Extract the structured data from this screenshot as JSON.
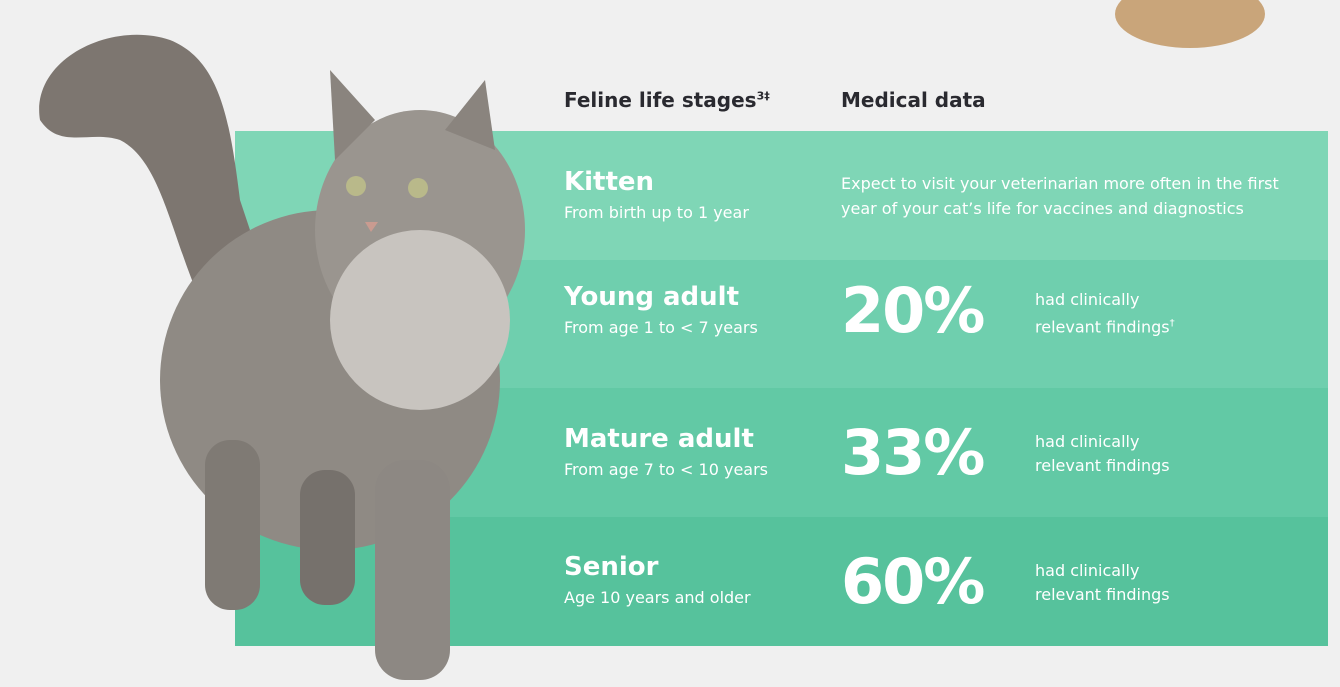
{
  "header": {
    "stage_title": "Feline life stages",
    "stage_note": "3‡",
    "data_title": "Medical data"
  },
  "rows": [
    {
      "stage": "Kitten",
      "range": "From birth up to 1 year",
      "text": "Expect to visit your veterinarian more often in the first year of your cat’s life for vaccines and diagnostics"
    },
    {
      "stage": "Young adult",
      "range": "From age 1 to < 7 years",
      "percent": "20%",
      "finding": "had clinically relevant findings",
      "note": "†"
    },
    {
      "stage": "Mature adult",
      "range": "From age 7 to < 10 years",
      "percent": "33%",
      "finding": "had clinically relevant findings"
    },
    {
      "stage": "Senior",
      "range": "Age 10 years and older",
      "percent": "60%",
      "finding": "had clinically relevant findings"
    }
  ]
}
